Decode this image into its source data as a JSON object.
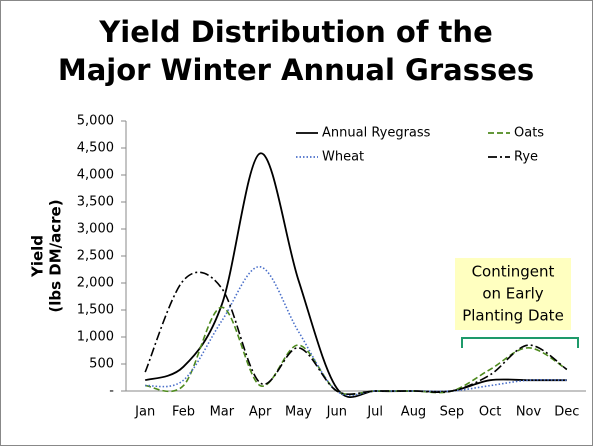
{
  "chart_data": {
    "type": "line",
    "title": [
      "Yield Distribution of the",
      "Major Winter Annual Grasses"
    ],
    "y_label": [
      "Yield",
      "(lbs DM/acre)"
    ],
    "categories": [
      "Jan",
      "Feb",
      "Mar",
      "Apr",
      "May",
      "Jun",
      "Jul",
      "Aug",
      "Sep",
      "Oct",
      "Nov",
      "Dec"
    ],
    "series": [
      {
        "name": "Annual Ryegrass",
        "color": "#000000",
        "dash": "solid",
        "values": [
          200,
          450,
          1600,
          4400,
          2050,
          50,
          0,
          0,
          0,
          200,
          200,
          200
        ]
      },
      {
        "name": "Oats",
        "color": "#4e8a1e",
        "dash": "dashed",
        "values": [
          100,
          100,
          1550,
          100,
          850,
          0,
          0,
          0,
          0,
          400,
          800,
          400
        ]
      },
      {
        "name": "Wheat",
        "color": "#4a6fc9",
        "dash": "dotted",
        "values": [
          100,
          200,
          1300,
          2300,
          1100,
          0,
          0,
          0,
          0,
          100,
          200,
          200
        ]
      },
      {
        "name": "Rye",
        "color": "#000000",
        "dash": "dashdot",
        "values": [
          350,
          2050,
          1900,
          150,
          800,
          0,
          0,
          0,
          0,
          300,
          850,
          400
        ]
      }
    ],
    "ylim": [
      0,
      5000
    ],
    "yticks": [
      {
        "value": 0,
        "label": "-"
      },
      500,
      {
        "value": 1000,
        "label": "1,000"
      },
      {
        "value": 1500,
        "label": "1,500"
      },
      {
        "value": 2000,
        "label": "2,000"
      },
      {
        "value": 2500,
        "label": "2,500"
      },
      {
        "value": 3000,
        "label": "3,000"
      },
      {
        "value": 3500,
        "label": "3,500"
      },
      {
        "value": 4000,
        "label": "4,000"
      },
      {
        "value": 4500,
        "label": "4,500"
      },
      {
        "value": 5000,
        "label": "5,000"
      }
    ],
    "annotation": [
      "Contingent",
      "on Early",
      "Planting Date"
    ],
    "legend": "upper right"
  }
}
